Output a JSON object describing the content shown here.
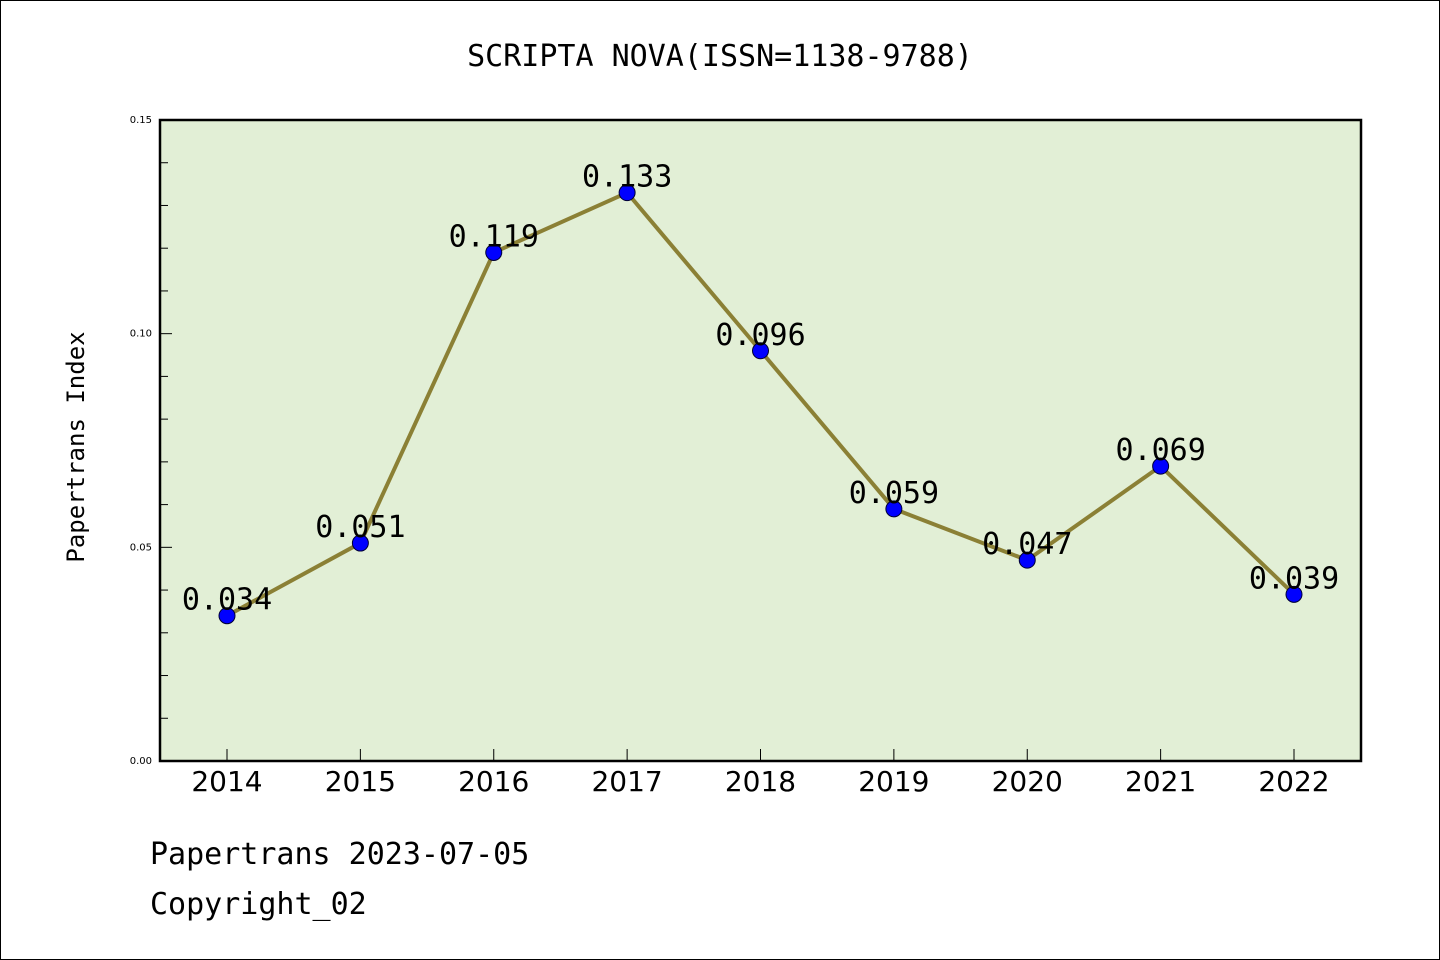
{
  "footer": {
    "date_line": "Papertrans 2023-07-05",
    "copyright": "Copyright_02"
  },
  "chart_data": {
    "type": "line",
    "title": "SCRIPTA NOVA(ISSN=1138-9788)",
    "xlabel": "",
    "ylabel": "Papertrans Index",
    "categories": [
      "2014",
      "2015",
      "2016",
      "2017",
      "2018",
      "2019",
      "2020",
      "2021",
      "2022"
    ],
    "values": [
      0.034,
      0.051,
      0.119,
      0.133,
      0.096,
      0.059,
      0.047,
      0.069,
      0.039
    ],
    "data_labels": [
      "0.034",
      "0.051",
      "0.119",
      "0.133",
      "0.096",
      "0.059",
      "0.047",
      "0.069",
      "0.039"
    ],
    "ylim": [
      0.0,
      0.15
    ],
    "yticks": [
      "0.00",
      "0.05",
      "0.10",
      "0.15"
    ],
    "grid": false,
    "legend": "none",
    "colors": {
      "plot_background": "#e2efd6",
      "line": "#8b8035",
      "marker": "#0000ff"
    }
  }
}
